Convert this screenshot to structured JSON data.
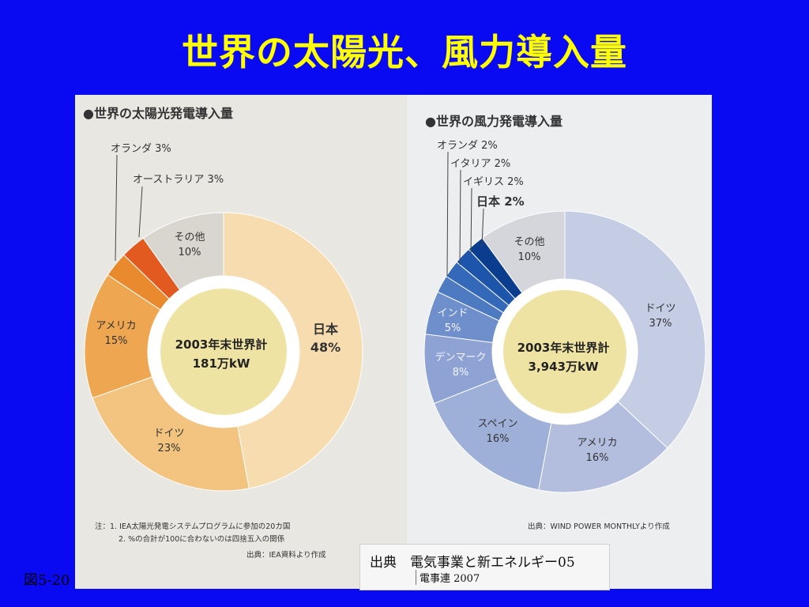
{
  "slide": {
    "title": "世界の太陽光、風力導入量",
    "figure_number": "図5-20"
  },
  "colors": {
    "background": "#0a0af2",
    "title": "#ffff00"
  },
  "source": {
    "line1": "出典　電気事業と新エネルギー05",
    "line2": "電事連 2007"
  },
  "chart_data": [
    {
      "type": "pie",
      "title": "●世界の太陽光発電導入量",
      "center_label": [
        "2003年末世界計",
        "181万kW"
      ],
      "slices": [
        {
          "label": "日本",
          "value": 48,
          "value_text": "48%",
          "color": "#f6dcae"
        },
        {
          "label": "ドイツ",
          "value": 23,
          "value_text": "23%",
          "color": "#f2c47f"
        },
        {
          "label": "アメリカ",
          "value": 15,
          "value_text": "15%",
          "color": "#eea650"
        },
        {
          "label": "オランダ",
          "value": 3,
          "value_text": "3%",
          "color": "#ea8a2e"
        },
        {
          "label": "オーストラリア",
          "value": 3,
          "value_text": "3%",
          "color": "#e25a20"
        },
        {
          "label": "その他",
          "value": 10,
          "value_text": "10%",
          "color": "#d9d6cf"
        }
      ],
      "notes": [
        "注：1. IEA太陽光発電システムプログラムに参加の20カ国",
        "2. %の合計が100に合わないのは四捨五入の関係",
        "出典：IEA資料より作成"
      ]
    },
    {
      "type": "pie",
      "title": "●世界の風力発電導入量",
      "center_label": [
        "2003年末世界計",
        "3,943万kW"
      ],
      "slices": [
        {
          "label": "ドイツ",
          "value": 37,
          "value_text": "37%",
          "color": "#c4cde3"
        },
        {
          "label": "アメリカ",
          "value": 16,
          "value_text": "16%",
          "color": "#b3bedf"
        },
        {
          "label": "スペイン",
          "value": 16,
          "value_text": "16%",
          "color": "#9eafd8"
        },
        {
          "label": "デンマーク",
          "value": 8,
          "value_text": "8%",
          "color": "#8ea3d4"
        },
        {
          "label": "インド",
          "value": 5,
          "value_text": "5%",
          "color": "#6f8fcc"
        },
        {
          "label": "オランダ",
          "value": 2,
          "value_text": "2%",
          "color": "#4e7ac2"
        },
        {
          "label": "イタリア",
          "value": 2,
          "value_text": "2%",
          "color": "#3468b8"
        },
        {
          "label": "イギリス",
          "value": 2,
          "value_text": "2%",
          "color": "#1d55aa"
        },
        {
          "label": "日本",
          "value": 2,
          "value_text": "2%",
          "color": "#0a3d8e"
        },
        {
          "label": "その他",
          "value": 10,
          "value_text": "10%",
          "color": "#d4d6dc"
        }
      ],
      "notes": [
        "出典：WIND POWER MONTHLYより作成"
      ]
    }
  ]
}
